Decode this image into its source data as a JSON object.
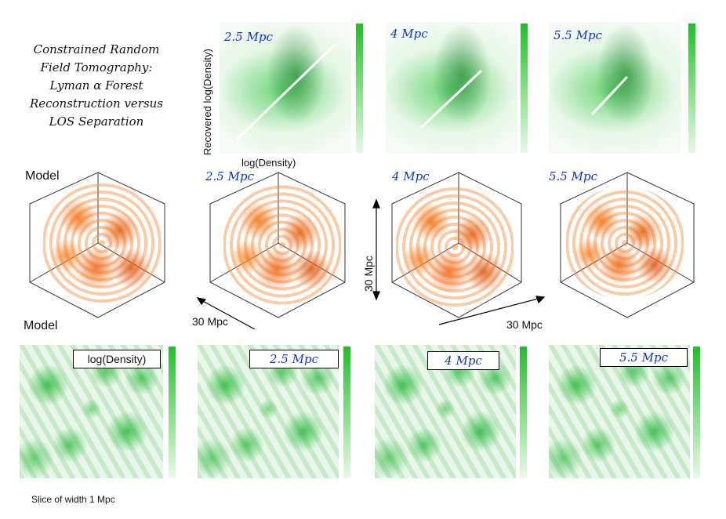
{
  "figure": {
    "title_lines": [
      "Constrained Random",
      "Field Tomography:",
      "Lyman α Forest",
      "Reconstruction versus",
      "LOS Separation"
    ],
    "scatter_ylabel": "Recovered log(Density)",
    "scatter_xlabel": "log(Density)",
    "scatter_panels": [
      {
        "label": "2.5 Mpc"
      },
      {
        "label": "4 Mpc"
      },
      {
        "label": "5.5 Mpc"
      }
    ],
    "volume_row": {
      "model_label": "Model",
      "panels": [
        {
          "label": "2.5 Mpc"
        },
        {
          "label": "4 Mpc"
        },
        {
          "label": "5.5 Mpc"
        }
      ],
      "scale_horizontal_1": "30 Mpc",
      "scale_vertical": "30 Mpc",
      "scale_horizontal_2": "30 Mpc"
    },
    "slice_row": {
      "model_label": "Model",
      "panels": [
        {
          "label": "log(Density)"
        },
        {
          "label": "2.5 Mpc"
        },
        {
          "label": "4 Mpc"
        },
        {
          "label": "5.5 Mpc"
        }
      ],
      "caption": "Slice of width 1 Mpc"
    }
  }
}
